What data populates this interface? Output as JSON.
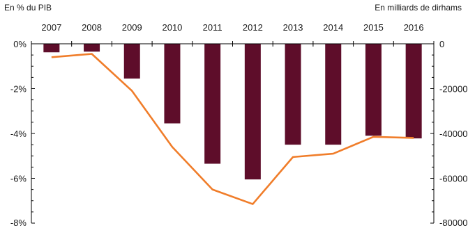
{
  "chart_data": {
    "type": "bar",
    "categories": [
      "2007",
      "2008",
      "2009",
      "2010",
      "2011",
      "2012",
      "2013",
      "2014",
      "2015",
      "2016"
    ],
    "left_axis_title": "En % du PIB",
    "right_axis_title": "En milliards de dirhams",
    "y_left": {
      "range": [
        -8,
        0
      ],
      "ticks": [
        0,
        -2,
        -4,
        -6,
        -8
      ],
      "tick_labels": [
        "0%",
        "-2%",
        "-4%",
        "-6%",
        "-8%"
      ]
    },
    "y_right": {
      "range": [
        -80000,
        0
      ],
      "ticks": [
        0,
        -20000,
        -40000,
        -60000,
        -80000
      ],
      "tick_labels": [
        "0",
        "-20000",
        "-40000",
        "-60000",
        "-80000"
      ]
    },
    "series": [
      {
        "type": "bar",
        "axis": "right",
        "color": "#5e0d2a",
        "values": [
          -3800,
          -3500,
          -15500,
          -35500,
          -53500,
          -60500,
          -45000,
          -45000,
          -41000,
          -42200
        ]
      },
      {
        "type": "line",
        "axis": "left",
        "color": "#f07d2a",
        "values": [
          -0.6,
          -0.45,
          -2.1,
          -4.6,
          -6.5,
          -7.15,
          -5.05,
          -4.9,
          -4.15,
          -4.2
        ]
      }
    ],
    "grid": false,
    "legend": "none"
  }
}
